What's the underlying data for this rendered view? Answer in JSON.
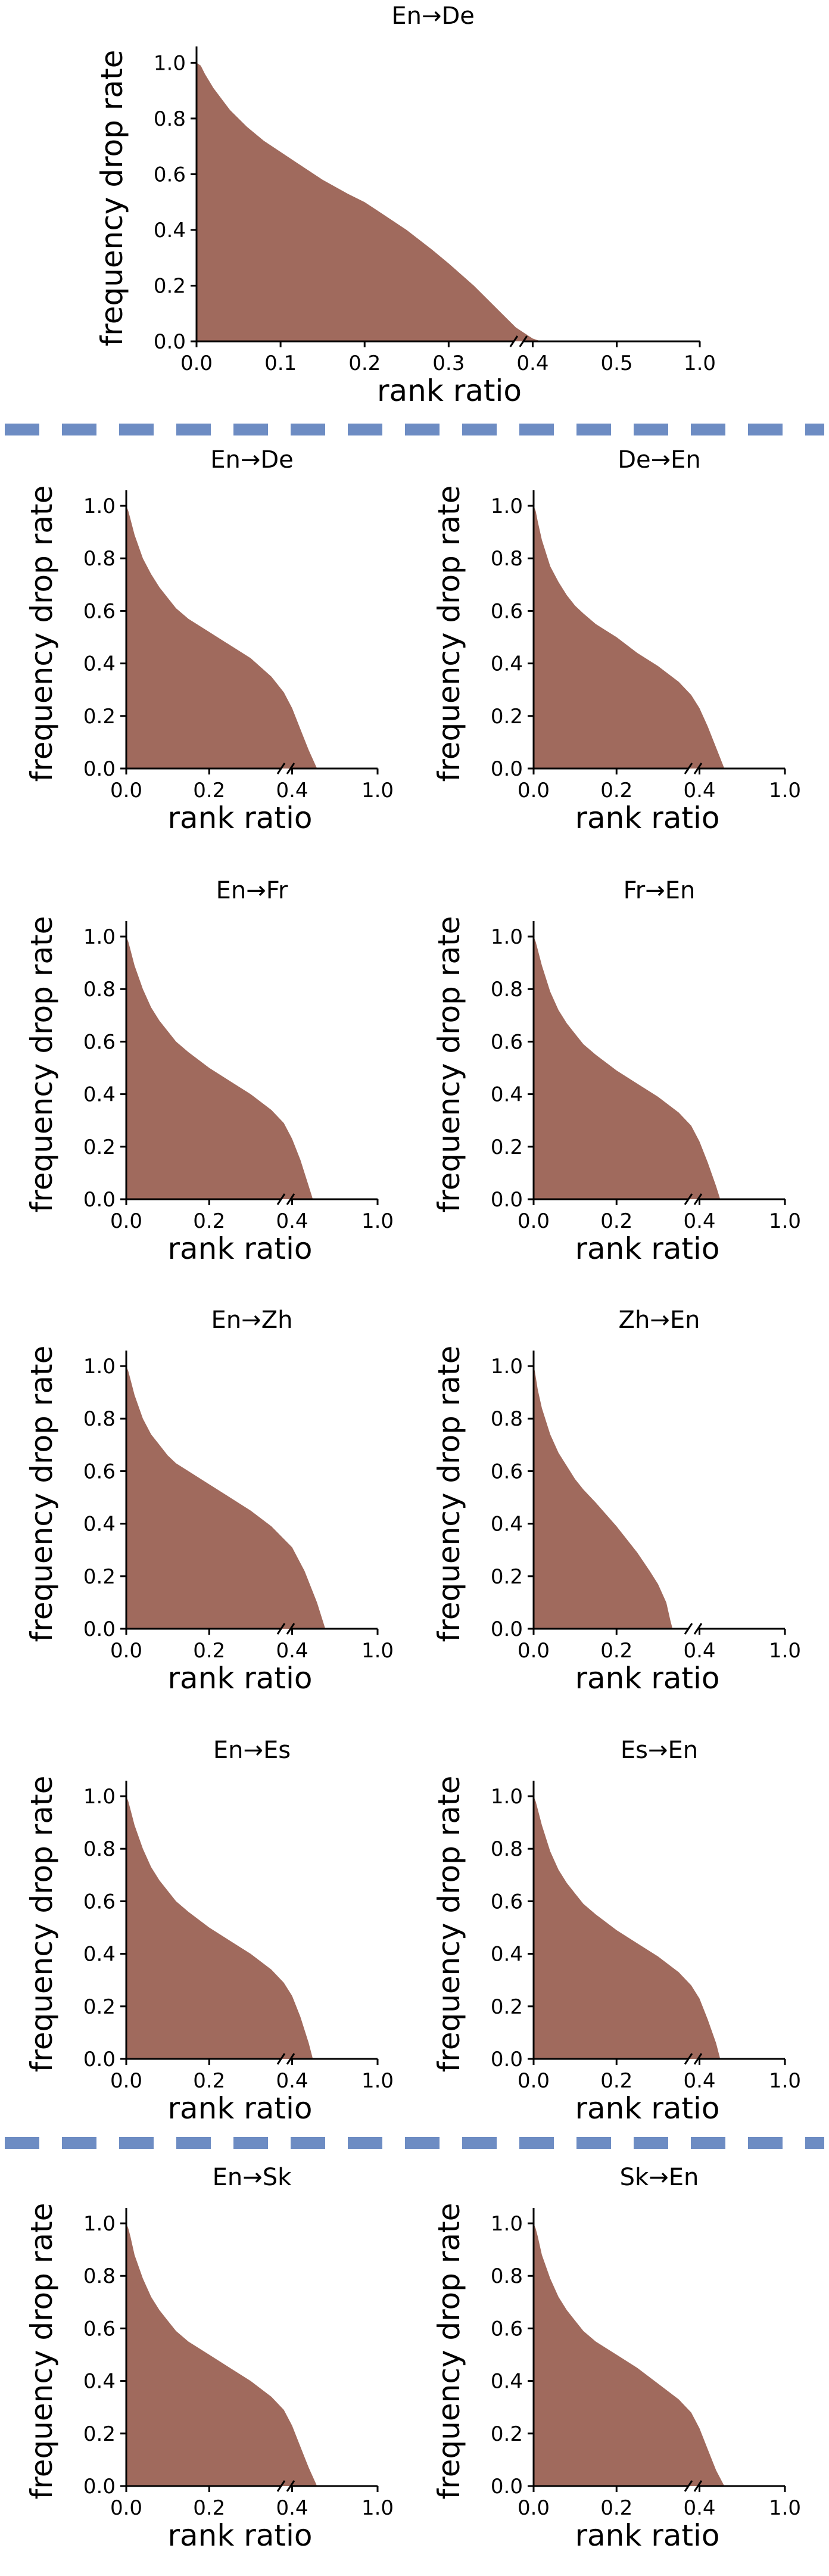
{
  "colors": {
    "fill": "#a06a5d",
    "divider": "#6d8cc3",
    "axis": "#000000"
  },
  "chart_data": [
    {
      "type": "area",
      "title": "En→De",
      "xlabel": "rank ratio",
      "ylabel": "frequency drop rate",
      "xlim": [
        0,
        1.0
      ],
      "ylim": [
        0,
        1.05
      ],
      "x_break": true,
      "xticks": [
        "0.0",
        "0.1",
        "0.2",
        "0.3",
        "0.4",
        "0.5",
        "1.0"
      ],
      "yticks": [
        "0.0",
        "0.2",
        "0.4",
        "0.6",
        "0.8",
        "1.0"
      ],
      "x": [
        0,
        0.005,
        0.01,
        0.02,
        0.04,
        0.06,
        0.08,
        0.1,
        0.12,
        0.15,
        0.18,
        0.2,
        0.22,
        0.25,
        0.28,
        0.3,
        0.33,
        0.36,
        0.38,
        0.4,
        0.41,
        0.42
      ],
      "y": [
        1.0,
        0.99,
        0.96,
        0.91,
        0.83,
        0.77,
        0.72,
        0.68,
        0.64,
        0.58,
        0.53,
        0.5,
        0.46,
        0.4,
        0.33,
        0.28,
        0.2,
        0.11,
        0.05,
        0.01,
        0.0,
        0.0
      ]
    },
    {
      "type": "area",
      "title": "En→De",
      "xlabel": "rank ratio",
      "ylabel": "frequency drop rate",
      "xlim": [
        0,
        1.0
      ],
      "ylim": [
        0,
        1.05
      ],
      "x_break": true,
      "xticks": [
        "0.0",
        "0.2",
        "0.4",
        "1.0"
      ],
      "yticks": [
        "0.0",
        "0.2",
        "0.4",
        "0.6",
        "0.8",
        "1.0"
      ],
      "x": [
        0,
        0.005,
        0.01,
        0.02,
        0.04,
        0.06,
        0.08,
        0.1,
        0.12,
        0.15,
        0.2,
        0.25,
        0.3,
        0.35,
        0.38,
        0.4,
        0.42,
        0.44,
        0.46
      ],
      "y": [
        1.0,
        0.98,
        0.95,
        0.89,
        0.8,
        0.74,
        0.69,
        0.65,
        0.61,
        0.57,
        0.52,
        0.47,
        0.42,
        0.35,
        0.29,
        0.23,
        0.15,
        0.07,
        0.0
      ]
    },
    {
      "type": "area",
      "title": "De→En",
      "xlabel": "rank ratio",
      "ylabel": "frequency drop rate",
      "xlim": [
        0,
        1.0
      ],
      "ylim": [
        0,
        1.05
      ],
      "x_break": true,
      "xticks": [
        "0.0",
        "0.2",
        "0.4",
        "1.0"
      ],
      "yticks": [
        "0.0",
        "0.2",
        "0.4",
        "0.6",
        "0.8",
        "1.0"
      ],
      "x": [
        0,
        0.005,
        0.01,
        0.02,
        0.04,
        0.06,
        0.08,
        0.1,
        0.12,
        0.15,
        0.2,
        0.25,
        0.3,
        0.35,
        0.38,
        0.4,
        0.42,
        0.44,
        0.46
      ],
      "y": [
        1.0,
        0.98,
        0.94,
        0.87,
        0.77,
        0.71,
        0.66,
        0.62,
        0.59,
        0.55,
        0.5,
        0.44,
        0.39,
        0.33,
        0.28,
        0.23,
        0.16,
        0.08,
        0.0
      ]
    },
    {
      "type": "area",
      "title": "En→Fr",
      "xlabel": "rank ratio",
      "ylabel": "frequency drop rate",
      "xlim": [
        0,
        1.0
      ],
      "ylim": [
        0,
        1.05
      ],
      "x_break": true,
      "xticks": [
        "0.0",
        "0.2",
        "0.4",
        "1.0"
      ],
      "yticks": [
        "0.0",
        "0.2",
        "0.4",
        "0.6",
        "0.8",
        "1.0"
      ],
      "x": [
        0,
        0.005,
        0.01,
        0.02,
        0.04,
        0.06,
        0.08,
        0.1,
        0.12,
        0.15,
        0.2,
        0.25,
        0.3,
        0.35,
        0.38,
        0.4,
        0.42,
        0.44,
        0.45
      ],
      "y": [
        1.0,
        0.98,
        0.95,
        0.89,
        0.8,
        0.73,
        0.68,
        0.64,
        0.6,
        0.56,
        0.5,
        0.45,
        0.4,
        0.34,
        0.29,
        0.23,
        0.15,
        0.05,
        0.0
      ]
    },
    {
      "type": "area",
      "title": "Fr→En",
      "xlabel": "rank ratio",
      "ylabel": "frequency drop rate",
      "xlim": [
        0,
        1.0
      ],
      "ylim": [
        0,
        1.05
      ],
      "x_break": true,
      "xticks": [
        "0.0",
        "0.2",
        "0.4",
        "1.0"
      ],
      "yticks": [
        "0.0",
        "0.2",
        "0.4",
        "0.6",
        "0.8",
        "1.0"
      ],
      "x": [
        0,
        0.005,
        0.01,
        0.02,
        0.04,
        0.06,
        0.08,
        0.1,
        0.12,
        0.15,
        0.2,
        0.25,
        0.3,
        0.35,
        0.38,
        0.4,
        0.42,
        0.44,
        0.45
      ],
      "y": [
        1.0,
        0.98,
        0.95,
        0.89,
        0.79,
        0.72,
        0.67,
        0.63,
        0.59,
        0.55,
        0.49,
        0.44,
        0.39,
        0.33,
        0.28,
        0.22,
        0.14,
        0.05,
        0.0
      ]
    },
    {
      "type": "area",
      "title": "En→Zh",
      "xlabel": "rank ratio",
      "ylabel": "frequency drop rate",
      "xlim": [
        0,
        1.0
      ],
      "ylim": [
        0,
        1.05
      ],
      "x_break": true,
      "xticks": [
        "0.0",
        "0.2",
        "0.4",
        "1.0"
      ],
      "yticks": [
        "0.0",
        "0.2",
        "0.4",
        "0.6",
        "0.8",
        "1.0"
      ],
      "x": [
        0,
        0.005,
        0.01,
        0.02,
        0.04,
        0.06,
        0.08,
        0.1,
        0.12,
        0.15,
        0.2,
        0.25,
        0.3,
        0.35,
        0.4,
        0.43,
        0.46,
        0.48
      ],
      "y": [
        1.0,
        0.98,
        0.95,
        0.89,
        0.8,
        0.74,
        0.7,
        0.66,
        0.63,
        0.6,
        0.55,
        0.5,
        0.45,
        0.39,
        0.31,
        0.22,
        0.1,
        0.0
      ]
    },
    {
      "type": "area",
      "title": "Zh→En",
      "xlabel": "rank ratio",
      "ylabel": "frequency drop rate",
      "xlim": [
        0,
        1.0
      ],
      "ylim": [
        0,
        1.05
      ],
      "x_break": true,
      "xticks": [
        "0.0",
        "0.2",
        "0.4",
        "1.0"
      ],
      "yticks": [
        "0.0",
        "0.2",
        "0.4",
        "0.6",
        "0.8",
        "1.0"
      ],
      "x": [
        0,
        0.003,
        0.006,
        0.01,
        0.02,
        0.04,
        0.06,
        0.08,
        0.1,
        0.12,
        0.15,
        0.2,
        0.25,
        0.28,
        0.3,
        0.32,
        0.33,
        0.335
      ],
      "y": [
        1.0,
        0.98,
        0.95,
        0.91,
        0.84,
        0.74,
        0.67,
        0.62,
        0.57,
        0.53,
        0.48,
        0.39,
        0.29,
        0.22,
        0.17,
        0.1,
        0.03,
        0.0
      ]
    },
    {
      "type": "area",
      "title": "En→Es",
      "xlabel": "rank ratio",
      "ylabel": "frequency drop rate",
      "xlim": [
        0,
        1.0
      ],
      "ylim": [
        0,
        1.05
      ],
      "x_break": true,
      "xticks": [
        "0.0",
        "0.2",
        "0.4",
        "1.0"
      ],
      "yticks": [
        "0.0",
        "0.2",
        "0.4",
        "0.6",
        "0.8",
        "1.0"
      ],
      "x": [
        0,
        0.005,
        0.01,
        0.02,
        0.04,
        0.06,
        0.08,
        0.1,
        0.12,
        0.15,
        0.2,
        0.25,
        0.3,
        0.35,
        0.38,
        0.4,
        0.42,
        0.44,
        0.45
      ],
      "y": [
        1.0,
        0.98,
        0.95,
        0.89,
        0.8,
        0.73,
        0.68,
        0.64,
        0.6,
        0.56,
        0.5,
        0.45,
        0.4,
        0.34,
        0.29,
        0.24,
        0.16,
        0.06,
        0.0
      ]
    },
    {
      "type": "area",
      "title": "Es→En",
      "xlabel": "rank ratio",
      "ylabel": "frequency drop rate",
      "xlim": [
        0,
        1.0
      ],
      "ylim": [
        0,
        1.05
      ],
      "x_break": true,
      "xticks": [
        "0.0",
        "0.2",
        "0.4",
        "1.0"
      ],
      "yticks": [
        "0.0",
        "0.2",
        "0.4",
        "0.6",
        "0.8",
        "1.0"
      ],
      "x": [
        0,
        0.005,
        0.01,
        0.02,
        0.04,
        0.06,
        0.08,
        0.1,
        0.12,
        0.15,
        0.2,
        0.25,
        0.3,
        0.35,
        0.38,
        0.4,
        0.42,
        0.44,
        0.45
      ],
      "y": [
        1.0,
        0.98,
        0.95,
        0.89,
        0.79,
        0.72,
        0.67,
        0.63,
        0.59,
        0.55,
        0.49,
        0.44,
        0.39,
        0.33,
        0.28,
        0.23,
        0.15,
        0.06,
        0.0
      ]
    },
    {
      "type": "area",
      "title": "En→Sk",
      "xlabel": "rank ratio",
      "ylabel": "frequency drop rate",
      "xlim": [
        0,
        1.0
      ],
      "ylim": [
        0,
        1.05
      ],
      "x_break": true,
      "xticks": [
        "0.0",
        "0.2",
        "0.4",
        "1.0"
      ],
      "yticks": [
        "0.0",
        "0.2",
        "0.4",
        "0.6",
        "0.8",
        "1.0"
      ],
      "x": [
        0,
        0.005,
        0.01,
        0.02,
        0.04,
        0.06,
        0.08,
        0.1,
        0.12,
        0.15,
        0.2,
        0.25,
        0.3,
        0.35,
        0.38,
        0.4,
        0.42,
        0.44,
        0.46
      ],
      "y": [
        1.0,
        0.98,
        0.95,
        0.88,
        0.79,
        0.72,
        0.67,
        0.63,
        0.59,
        0.55,
        0.5,
        0.45,
        0.4,
        0.34,
        0.29,
        0.23,
        0.15,
        0.07,
        0.0
      ]
    },
    {
      "type": "area",
      "title": "Sk→En",
      "xlabel": "rank ratio",
      "ylabel": "frequency drop rate",
      "xlim": [
        0,
        1.0
      ],
      "ylim": [
        0,
        1.05
      ],
      "x_break": true,
      "xticks": [
        "0.0",
        "0.2",
        "0.4",
        "1.0"
      ],
      "yticks": [
        "0.0",
        "0.2",
        "0.4",
        "0.6",
        "0.8",
        "1.0"
      ],
      "x": [
        0,
        0.005,
        0.01,
        0.02,
        0.04,
        0.06,
        0.08,
        0.1,
        0.12,
        0.15,
        0.2,
        0.25,
        0.3,
        0.35,
        0.38,
        0.4,
        0.42,
        0.44,
        0.46
      ],
      "y": [
        1.0,
        0.98,
        0.95,
        0.88,
        0.79,
        0.72,
        0.67,
        0.63,
        0.59,
        0.55,
        0.5,
        0.45,
        0.39,
        0.33,
        0.28,
        0.22,
        0.14,
        0.06,
        0.0
      ]
    }
  ]
}
